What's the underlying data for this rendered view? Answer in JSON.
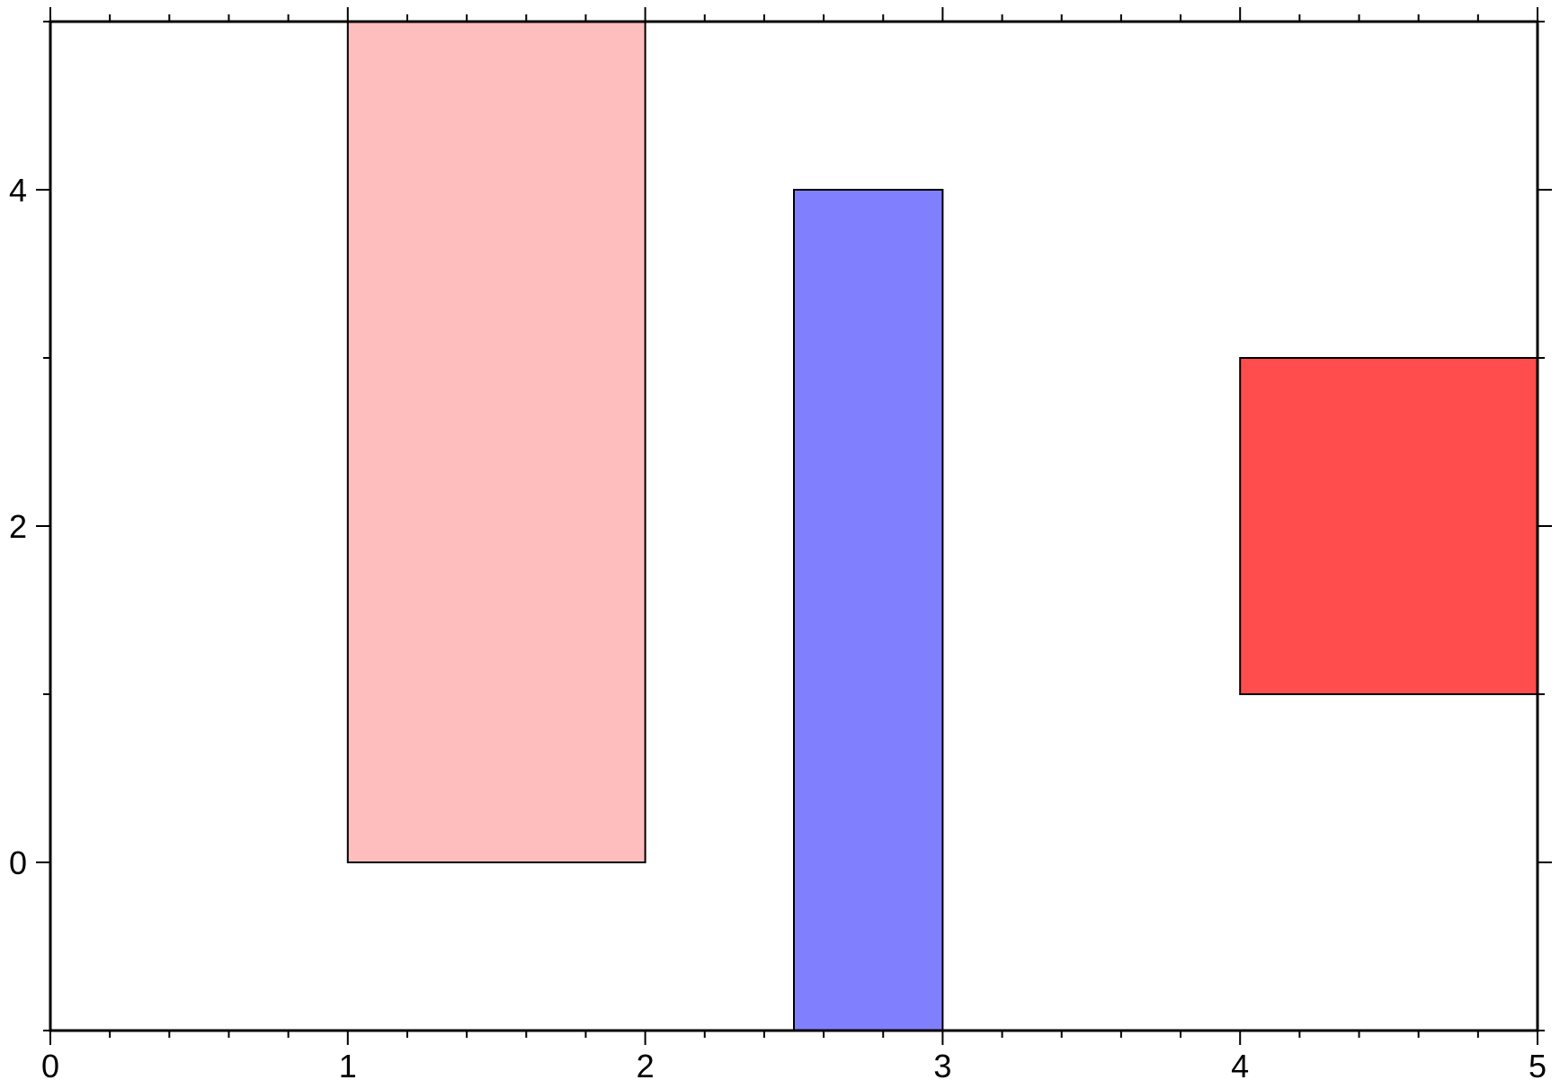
{
  "chart_data": {
    "type": "bar",
    "title": "",
    "xlabel": "",
    "ylabel": "",
    "xlim": [
      0,
      5
    ],
    "ylim": [
      -1,
      5
    ],
    "x_major_ticks": [
      0,
      1,
      2,
      3,
      4,
      5
    ],
    "x_tick_labels": [
      "0",
      "1",
      "2",
      "3",
      "4",
      "5"
    ],
    "x_minor_step": 0.2,
    "y_major_ticks": [
      0,
      2,
      4
    ],
    "y_tick_labels": [
      "0",
      "2",
      "4"
    ],
    "y_minor_step": 1,
    "grid": false,
    "legend": "none",
    "bars": [
      {
        "x0": 1.0,
        "x1": 2.0,
        "y0": 0,
        "y1": 5,
        "color": "#ffbebe"
      },
      {
        "x0": 2.5,
        "x1": 3.0,
        "y0": -1,
        "y1": 4,
        "color": "#8080ff"
      },
      {
        "x0": 4.0,
        "x1": 5.0,
        "y0": 1,
        "y1": 3,
        "color": "#ff4d4d"
      }
    ]
  }
}
